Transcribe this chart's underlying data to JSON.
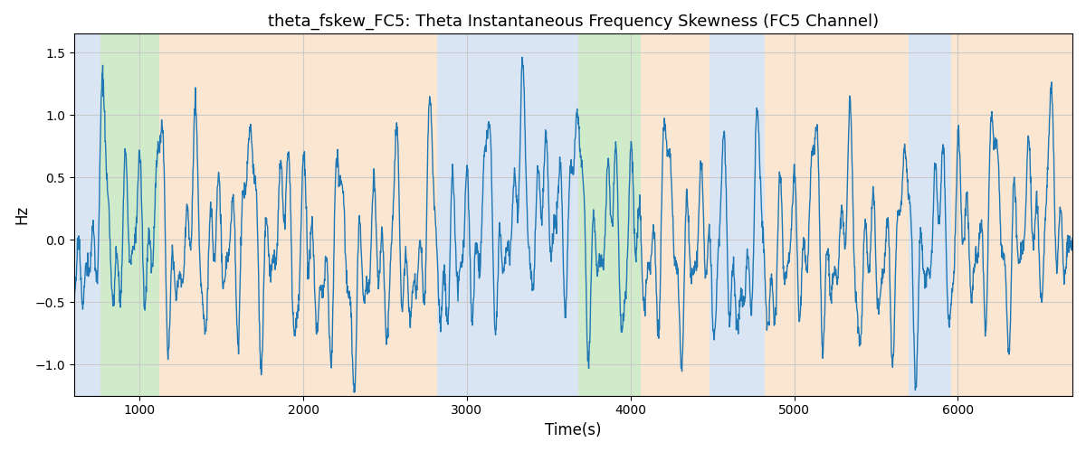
{
  "title": "theta_fskew_FC5: Theta Instantaneous Frequency Skewness (FC5 Channel)",
  "xlabel": "Time(s)",
  "ylabel": "Hz",
  "xlim": [
    600,
    6700
  ],
  "ylim": [
    -1.25,
    1.65
  ],
  "line_color": "#1f77b4",
  "line_width": 1.0,
  "background_color": "#ffffff",
  "grid_color": "#c8c8c8",
  "yticks": [
    -1.0,
    -0.5,
    0.0,
    0.5,
    1.0,
    1.5
  ],
  "xticks": [
    1000,
    2000,
    3000,
    4000,
    5000,
    6000
  ],
  "colored_bands": [
    {
      "xmin": 600,
      "xmax": 760,
      "color": "#aec7e8",
      "alpha": 0.45
    },
    {
      "xmin": 760,
      "xmax": 1120,
      "color": "#98d48a",
      "alpha": 0.45
    },
    {
      "xmin": 1120,
      "xmax": 1470,
      "color": "#f5c99a",
      "alpha": 0.45
    },
    {
      "xmin": 1470,
      "xmax": 2820,
      "color": "#f5c99a",
      "alpha": 0.45
    },
    {
      "xmin": 2820,
      "xmax": 3560,
      "color": "#aec7e8",
      "alpha": 0.45
    },
    {
      "xmin": 3560,
      "xmax": 3680,
      "color": "#aec7e8",
      "alpha": 0.45
    },
    {
      "xmin": 3680,
      "xmax": 3780,
      "color": "#98d48a",
      "alpha": 0.45
    },
    {
      "xmin": 3780,
      "xmax": 4060,
      "color": "#98d48a",
      "alpha": 0.45
    },
    {
      "xmin": 4060,
      "xmax": 4480,
      "color": "#f5c99a",
      "alpha": 0.45
    },
    {
      "xmin": 4480,
      "xmax": 4820,
      "color": "#aec7e8",
      "alpha": 0.45
    },
    {
      "xmin": 4820,
      "xmax": 5700,
      "color": "#f5c99a",
      "alpha": 0.45
    },
    {
      "xmin": 5700,
      "xmax": 5960,
      "color": "#aec7e8",
      "alpha": 0.45
    },
    {
      "xmin": 5960,
      "xmax": 6700,
      "color": "#f5c99a",
      "alpha": 0.45
    }
  ],
  "n_points": 3000,
  "time_start": 600,
  "time_end": 6700,
  "seed": 17
}
